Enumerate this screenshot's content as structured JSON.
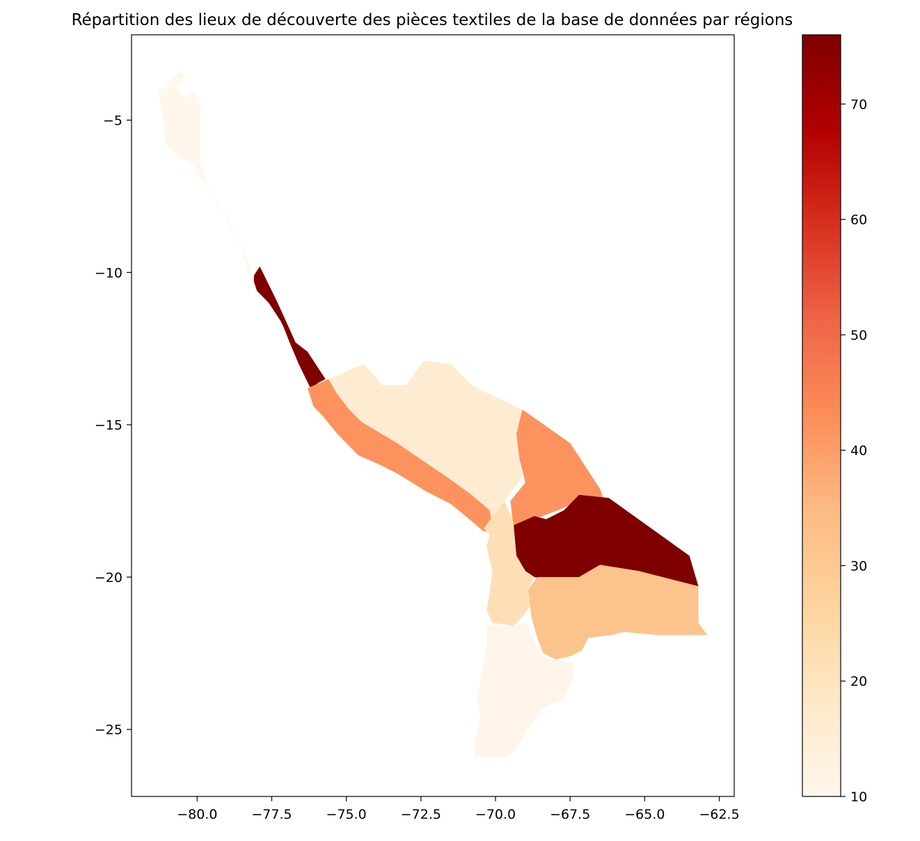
{
  "figure": {
    "title": "Répartition des lieux de découverte des pièces textiles de la base de données par régions"
  },
  "chart_data": {
    "type": "choropleth",
    "title": "Répartition des lieux de découverte des pièces textiles de la base de données par régions",
    "xlabel": "",
    "ylabel": "",
    "xlim": [
      -82.2,
      -62.0
    ],
    "ylim": [
      -27.2,
      -2.2
    ],
    "x_ticks": [
      -80.0,
      -77.5,
      -75.0,
      -72.5,
      -70.0,
      -67.5,
      -65.0,
      -62.5
    ],
    "x_tick_labels": [
      "−80.0",
      "−77.5",
      "−75.0",
      "−72.5",
      "−70.0",
      "−67.5",
      "−65.0",
      "−62.5"
    ],
    "y_ticks": [
      -5,
      -10,
      -15,
      -20,
      -25
    ],
    "y_tick_labels": [
      "−5",
      "−10",
      "−15",
      "−20",
      "−25"
    ],
    "colorbar": {
      "colormap": "OrRd",
      "min": 10,
      "max": 76,
      "ticks": [
        10,
        20,
        30,
        40,
        50,
        60,
        70
      ],
      "tick_labels": [
        "10",
        "20",
        "30",
        "40",
        "50",
        "60",
        "70"
      ],
      "colors": [
        "#fff7ec",
        "#fee8c8",
        "#fdd49e",
        "#fdbb84",
        "#fc8d59",
        "#ef6548",
        "#d7301f",
        "#b30000",
        "#7f0000"
      ]
    },
    "regions": [
      {
        "value": 10,
        "coords": [
          [
            -80.6,
            -3.4
          ],
          [
            -80.4,
            -3.5
          ],
          [
            -80.7,
            -3.9
          ],
          [
            -80.4,
            -4.3
          ],
          [
            -80.2,
            -4.0
          ],
          [
            -79.9,
            -4.4
          ],
          [
            -79.9,
            -5.5
          ],
          [
            -79.9,
            -6.4
          ],
          [
            -79.6,
            -7.2
          ],
          [
            -79.3,
            -7.7
          ],
          [
            -78.9,
            -8.4
          ],
          [
            -78.5,
            -9.2
          ],
          [
            -78.3,
            -10.0
          ],
          [
            -78.0,
            -9.8
          ],
          [
            -77.9,
            -9.9
          ],
          [
            -78.2,
            -9.9
          ],
          [
            -78.4,
            -9.4
          ],
          [
            -78.6,
            -8.9
          ],
          [
            -78.9,
            -8.5
          ],
          [
            -79.1,
            -8.1
          ],
          [
            -79.4,
            -7.6
          ],
          [
            -79.5,
            -7.3
          ],
          [
            -79.9,
            -6.9
          ],
          [
            -80.1,
            -6.5
          ],
          [
            -80.9,
            -6.0
          ],
          [
            -81.0,
            -5.8
          ],
          [
            -81.1,
            -5.6
          ],
          [
            -81.1,
            -5.2
          ],
          [
            -81.2,
            -4.5
          ],
          [
            -81.3,
            -4.1
          ],
          [
            -80.9,
            -3.7
          ]
        ]
      },
      {
        "value": 76,
        "coords": [
          [
            -78.1,
            -10.1
          ],
          [
            -77.9,
            -9.8
          ],
          [
            -77.3,
            -11.0
          ],
          [
            -76.7,
            -12.3
          ],
          [
            -76.3,
            -12.6
          ],
          [
            -75.7,
            -13.5
          ],
          [
            -75.9,
            -13.6
          ],
          [
            -76.2,
            -13.8
          ],
          [
            -76.3,
            -13.6
          ],
          [
            -76.6,
            -13.0
          ],
          [
            -76.9,
            -12.3
          ],
          [
            -77.1,
            -11.8
          ],
          [
            -77.2,
            -11.6
          ],
          [
            -77.4,
            -11.3
          ],
          [
            -77.6,
            -11.0
          ],
          [
            -77.8,
            -10.8
          ],
          [
            -78.0,
            -10.6
          ],
          [
            -78.1,
            -10.3
          ]
        ]
      },
      {
        "value": 42,
        "coords": [
          [
            -76.3,
            -13.8
          ],
          [
            -75.6,
            -13.5
          ],
          [
            -75.3,
            -14.0
          ],
          [
            -74.9,
            -14.5
          ],
          [
            -74.5,
            -14.9
          ],
          [
            -73.3,
            -15.6
          ],
          [
            -72.4,
            -16.2
          ],
          [
            -71.5,
            -16.8
          ],
          [
            -70.8,
            -17.3
          ],
          [
            -70.2,
            -17.8
          ],
          [
            -70.0,
            -18.2
          ],
          [
            -70.1,
            -18.5
          ],
          [
            -70.4,
            -18.5
          ],
          [
            -71.0,
            -18.0
          ],
          [
            -71.5,
            -17.6
          ],
          [
            -72.3,
            -17.2
          ],
          [
            -72.8,
            -16.9
          ],
          [
            -73.3,
            -16.6
          ],
          [
            -73.9,
            -16.3
          ],
          [
            -74.6,
            -16.0
          ],
          [
            -75.3,
            -15.3
          ],
          [
            -75.8,
            -14.7
          ],
          [
            -76.1,
            -14.4
          ]
        ]
      },
      {
        "value": 16,
        "coords": [
          [
            -75.6,
            -13.5
          ],
          [
            -74.4,
            -13.0
          ],
          [
            -73.8,
            -13.7
          ],
          [
            -73.0,
            -13.7
          ],
          [
            -72.4,
            -12.9
          ],
          [
            -71.5,
            -13.0
          ],
          [
            -70.8,
            -13.7
          ],
          [
            -70.2,
            -14.0
          ],
          [
            -69.1,
            -14.5
          ],
          [
            -69.3,
            -15.3
          ],
          [
            -69.2,
            -16.1
          ],
          [
            -69.1,
            -16.7
          ],
          [
            -69.7,
            -17.5
          ],
          [
            -70.1,
            -18.3
          ],
          [
            -70.2,
            -17.8
          ],
          [
            -70.8,
            -17.3
          ],
          [
            -71.5,
            -16.8
          ],
          [
            -72.4,
            -16.2
          ],
          [
            -73.3,
            -15.6
          ],
          [
            -74.5,
            -14.9
          ],
          [
            -74.9,
            -14.5
          ],
          [
            -75.3,
            -14.0
          ]
        ]
      },
      {
        "value": 42,
        "coords": [
          [
            -69.1,
            -14.5
          ],
          [
            -67.5,
            -15.6
          ],
          [
            -66.5,
            -17.1
          ],
          [
            -66.1,
            -18.2
          ],
          [
            -67.2,
            -17.5
          ],
          [
            -67.9,
            -17.8
          ],
          [
            -68.7,
            -18.1
          ],
          [
            -69.4,
            -18.4
          ],
          [
            -69.5,
            -17.5
          ],
          [
            -69.0,
            -16.9
          ],
          [
            -69.2,
            -16.1
          ],
          [
            -69.3,
            -15.3
          ]
        ]
      },
      {
        "value": 76,
        "coords": [
          [
            -69.4,
            -18.3
          ],
          [
            -68.7,
            -18.0
          ],
          [
            -68.3,
            -18.1
          ],
          [
            -67.7,
            -17.8
          ],
          [
            -67.2,
            -17.3
          ],
          [
            -66.2,
            -17.4
          ],
          [
            -63.5,
            -19.3
          ],
          [
            -63.2,
            -20.3
          ],
          [
            -65.2,
            -19.8
          ],
          [
            -66.5,
            -19.6
          ],
          [
            -67.2,
            -20.0
          ],
          [
            -68.3,
            -20.1
          ],
          [
            -68.7,
            -20.0
          ],
          [
            -69.0,
            -19.8
          ],
          [
            -69.3,
            -19.3
          ]
        ]
      },
      {
        "value": 22,
        "coords": [
          [
            -70.4,
            -18.4
          ],
          [
            -69.7,
            -17.5
          ],
          [
            -69.4,
            -18.2
          ],
          [
            -69.3,
            -19.3
          ],
          [
            -69.0,
            -19.8
          ],
          [
            -68.7,
            -20.0
          ],
          [
            -68.9,
            -20.4
          ],
          [
            -68.8,
            -20.9
          ],
          [
            -69.1,
            -21.3
          ],
          [
            -69.4,
            -21.6
          ],
          [
            -70.1,
            -21.5
          ],
          [
            -70.3,
            -21.1
          ],
          [
            -70.2,
            -20.5
          ],
          [
            -70.1,
            -19.8
          ],
          [
            -70.3,
            -19.0
          ],
          [
            -70.2,
            -18.6
          ]
        ]
      },
      {
        "value": 32,
        "coords": [
          [
            -68.6,
            -20.0
          ],
          [
            -67.2,
            -20.0
          ],
          [
            -66.5,
            -19.6
          ],
          [
            -65.2,
            -19.8
          ],
          [
            -63.2,
            -20.3
          ],
          [
            -63.2,
            -21.5
          ],
          [
            -62.9,
            -21.9
          ],
          [
            -64.6,
            -21.9
          ],
          [
            -65.7,
            -21.8
          ],
          [
            -66.1,
            -21.9
          ],
          [
            -66.9,
            -22.0
          ],
          [
            -67.1,
            -22.4
          ],
          [
            -67.5,
            -22.6
          ],
          [
            -68.0,
            -22.7
          ],
          [
            -68.4,
            -22.5
          ],
          [
            -68.6,
            -22.0
          ],
          [
            -68.8,
            -21.3
          ],
          [
            -68.9,
            -20.4
          ]
        ]
      },
      {
        "value": 11,
        "coords": [
          [
            -70.3,
            -21.6
          ],
          [
            -69.4,
            -21.6
          ],
          [
            -69.0,
            -21.5
          ],
          [
            -68.8,
            -21.9
          ],
          [
            -68.5,
            -22.5
          ],
          [
            -68.2,
            -22.7
          ],
          [
            -67.4,
            -22.8
          ],
          [
            -67.4,
            -23.3
          ],
          [
            -67.7,
            -24.0
          ],
          [
            -68.4,
            -24.3
          ],
          [
            -68.7,
            -24.7
          ],
          [
            -69.0,
            -25.1
          ],
          [
            -69.2,
            -25.5
          ],
          [
            -69.6,
            -25.9
          ],
          [
            -70.7,
            -25.9
          ],
          [
            -70.7,
            -25.4
          ],
          [
            -70.5,
            -24.7
          ],
          [
            -70.6,
            -24.0
          ],
          [
            -70.5,
            -23.3
          ],
          [
            -70.3,
            -22.4
          ]
        ]
      }
    ]
  }
}
